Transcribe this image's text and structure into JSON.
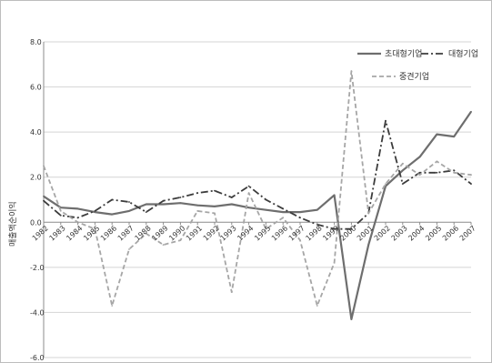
{
  "chart_data": {
    "type": "line",
    "title": "",
    "xlabel": "",
    "ylabel": "매출액순이익",
    "ylim": [
      -6,
      8
    ],
    "yticks": [
      8,
      6,
      4,
      2,
      0,
      -2,
      -4,
      -6
    ],
    "ytick_labels": [
      "8.0",
      "6.0",
      "4.0",
      "2.0",
      "0.0",
      "-2.0",
      "-4.0",
      "-6.0"
    ],
    "grid": true,
    "legend_position": "top-right",
    "categories": [
      "1982",
      "1983",
      "1984",
      "1985",
      "1986",
      "1987",
      "1988",
      "1989",
      "1990",
      "1991",
      "1992",
      "1993",
      "1994",
      "1995",
      "1996",
      "1997",
      "1998",
      "1999",
      "2000",
      "2001",
      "2002",
      "2003",
      "2004",
      "2005",
      "2006",
      "2007"
    ],
    "series": [
      {
        "name": "초대형기업",
        "style": "solid",
        "color": "#6e6e6e",
        "values": [
          1.15,
          0.65,
          0.6,
          0.45,
          0.35,
          0.5,
          0.8,
          0.8,
          0.85,
          0.75,
          0.7,
          0.8,
          0.65,
          0.55,
          0.45,
          0.45,
          0.55,
          1.2,
          -4.3,
          -1.0,
          1.6,
          2.3,
          2.9,
          3.9,
          3.8,
          4.9
        ]
      },
      {
        "name": "대형기업",
        "style": "dashdot",
        "color": "#3c3c3c",
        "values": [
          0.95,
          0.3,
          0.2,
          0.5,
          1.0,
          0.9,
          0.45,
          0.95,
          1.1,
          1.3,
          1.4,
          1.1,
          1.6,
          1.0,
          0.6,
          0.2,
          -0.1,
          -0.3,
          -0.3,
          0.4,
          4.5,
          1.7,
          2.2,
          2.2,
          2.3,
          1.7
        ]
      },
      {
        "name": "중견기업",
        "style": "dashed",
        "color": "#a6a6a6",
        "values": [
          2.5,
          0.5,
          0.0,
          -0.3,
          -3.7,
          -1.2,
          -0.5,
          -1.0,
          -0.8,
          0.5,
          0.4,
          -3.1,
          1.3,
          -0.3,
          0.2,
          -0.8,
          -3.7,
          -1.8,
          6.7,
          0.4,
          1.7,
          2.6,
          2.1,
          2.7,
          2.2,
          2.1
        ]
      }
    ]
  }
}
